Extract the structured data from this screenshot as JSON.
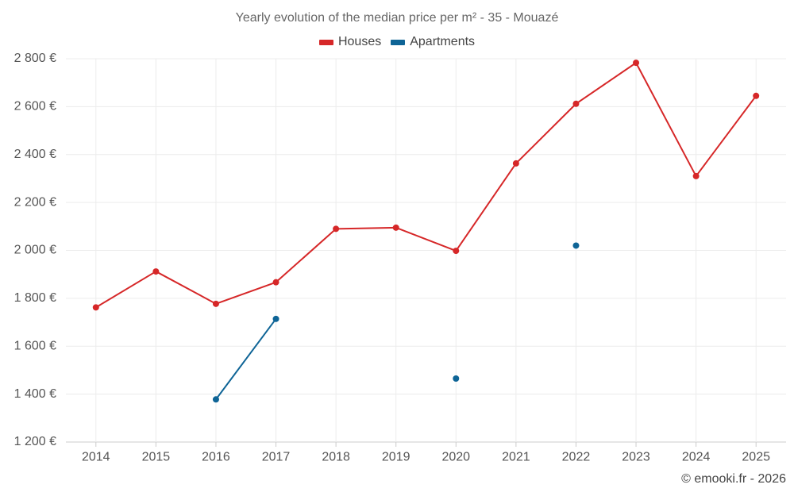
{
  "chart_data": {
    "type": "line",
    "title": "Yearly evolution of the median price per m² - 35 - Mouazé",
    "xlabel": "",
    "ylabel": "",
    "categories": [
      "2014",
      "2015",
      "2016",
      "2017",
      "2018",
      "2019",
      "2020",
      "2021",
      "2022",
      "2023",
      "2024",
      "2025"
    ],
    "ylim": [
      1200,
      2800
    ],
    "yticks": [
      1200,
      1400,
      1600,
      1800,
      2000,
      2200,
      2400,
      2600,
      2800
    ],
    "ytick_labels": [
      "1 200 €",
      "1 400 €",
      "1 600 €",
      "1 800 €",
      "2 000 €",
      "2 200 €",
      "2 400 €",
      "2 600 €",
      "2 800 €"
    ],
    "grid": true,
    "legend_position": "top-center",
    "series": [
      {
        "name": "Houses",
        "color": "#d62728",
        "values": [
          1762,
          1912,
          1777,
          1867,
          2090,
          2095,
          1998,
          2363,
          2612,
          2783,
          2310,
          2645
        ]
      },
      {
        "name": "Apartments",
        "color": "#0e6496",
        "values": [
          null,
          null,
          1378,
          1714,
          null,
          null,
          1465,
          null,
          2020,
          null,
          null,
          null
        ]
      }
    ]
  },
  "credit": "© emooki.fr - 2026"
}
